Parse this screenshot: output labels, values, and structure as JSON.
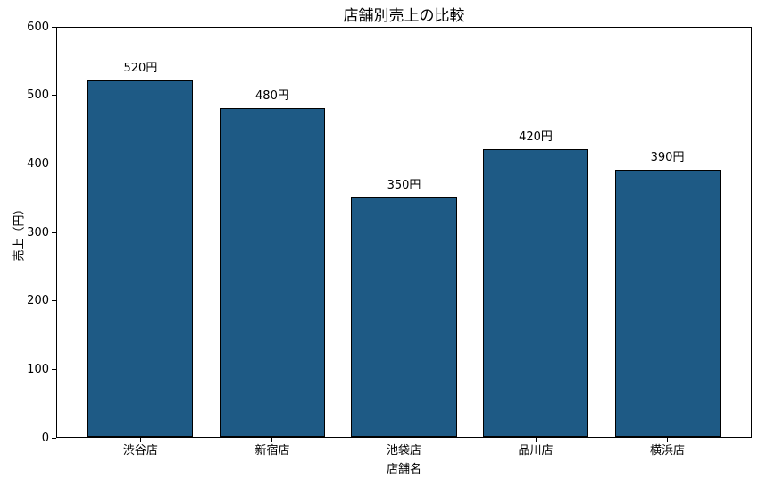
{
  "chart_data": {
    "type": "bar",
    "title": "店舗別売上の比較",
    "xlabel": "店舗名",
    "ylabel": "売上（円）",
    "categories": [
      "渋谷店",
      "新宿店",
      "池袋店",
      "品川店",
      "横浜店"
    ],
    "values": [
      520,
      480,
      350,
      420,
      390
    ],
    "bar_labels": [
      "520円",
      "480円",
      "350円",
      "420円",
      "390円"
    ],
    "ylim": [
      0,
      600
    ],
    "yticks": [
      "0",
      "100",
      "200",
      "300",
      "400",
      "500",
      "600"
    ],
    "ytick_values": [
      0,
      100,
      200,
      300,
      400,
      500,
      600
    ],
    "grid": false,
    "legend": "none",
    "bar_color": "#1e5a85",
    "bar_edge_color": "#000000",
    "background_color": "#ffffff"
  }
}
